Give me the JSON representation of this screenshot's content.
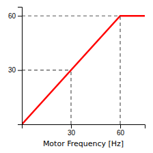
{
  "chart_data": {
    "type": "line",
    "xlabel": "Motor Frequency [Hz]",
    "x": [
      0,
      60,
      75
    ],
    "series": [
      {
        "values": [
          0,
          60,
          60
        ],
        "color": "#ff0000"
      },
      {
        "type": "guide",
        "x": [
          30,
          60
        ],
        "values": [
          30,
          60
        ],
        "color": "#555555",
        "line_style": "dashed"
      }
    ],
    "xlim": [
      0,
      75
    ],
    "ylim": [
      0,
      65
    ],
    "xticks": [
      30,
      60
    ],
    "yticks": [
      30,
      60
    ],
    "grid": false
  }
}
